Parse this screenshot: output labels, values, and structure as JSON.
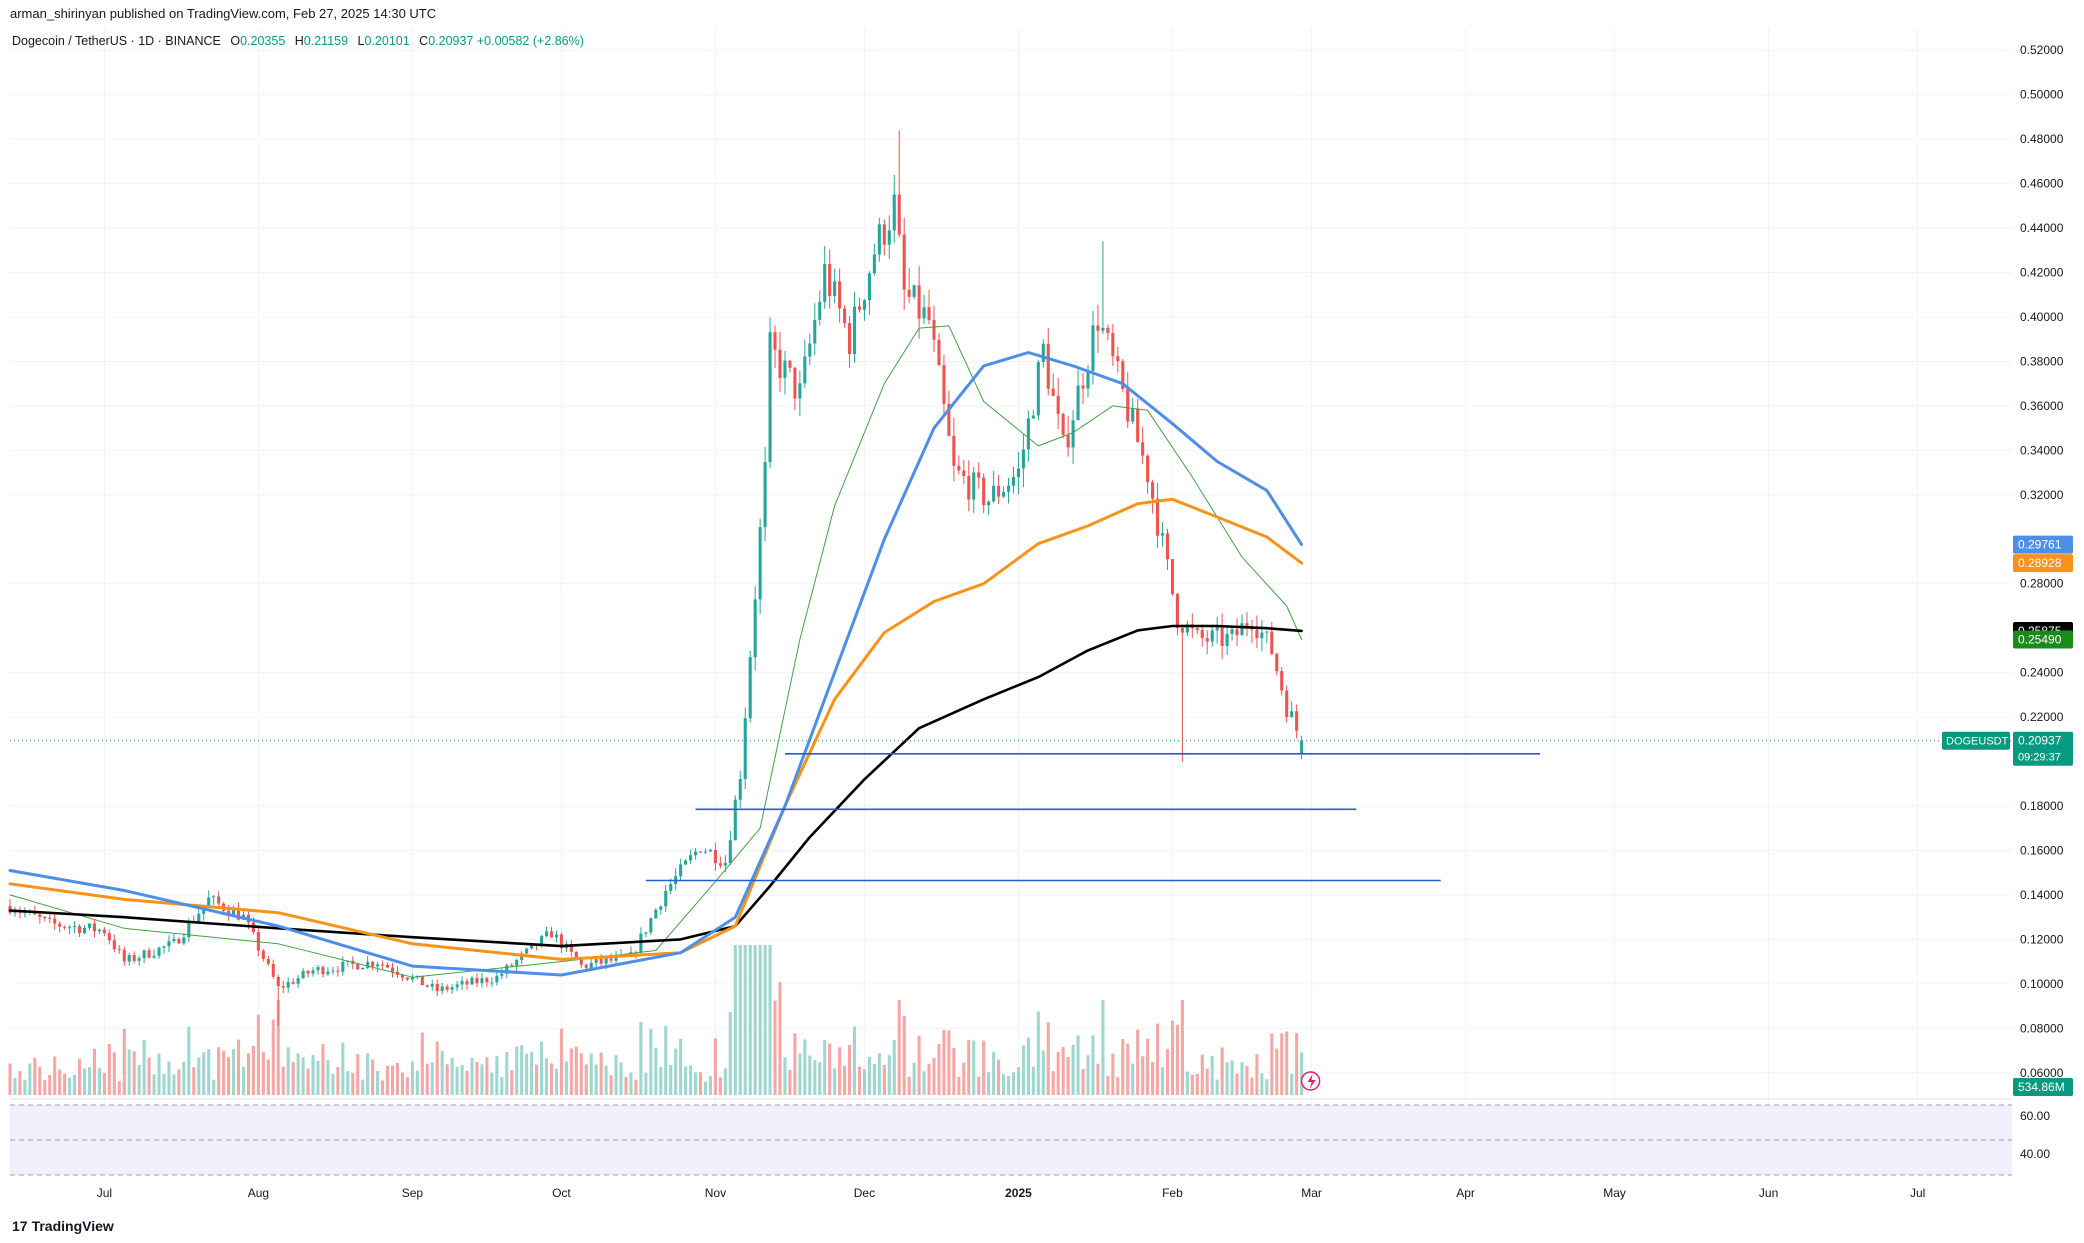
{
  "header": {
    "publisher": "arman_shirinyan published on TradingView.com, Feb 27, 2025 14:30 UTC",
    "symbol_line": "Dogecoin / TetherUS · 1D · BINANCE",
    "ohlc": {
      "open_key": "O",
      "open": "0.20355",
      "high_key": "H",
      "high": "0.21159",
      "low_key": "L",
      "low": "0.20101",
      "close_key": "C",
      "close": "0.20937",
      "change": "+0.00582 (+2.86%)"
    }
  },
  "footer": {
    "brand": "TradingView",
    "brand_mark": "17"
  },
  "colors": {
    "up": "#26a69a",
    "down": "#ef5350",
    "ma_blue": "#4d8fe8",
    "ma_orange": "#f7931a",
    "ma_black": "#000000",
    "ma_green": "#43a047",
    "hline": "#1e5ed8",
    "price_label": "#089981",
    "rsi_band": "#f2eefb"
  },
  "chart_data": {
    "type": "candlestick",
    "x_ticks": [
      {
        "label": "Jul",
        "date": "2024-07-01"
      },
      {
        "label": "Aug",
        "date": "2024-08-01"
      },
      {
        "label": "Sep",
        "date": "2024-09-01"
      },
      {
        "label": "Oct",
        "date": "2024-10-01"
      },
      {
        "label": "Nov",
        "date": "2024-11-01"
      },
      {
        "label": "Dec",
        "date": "2024-12-01"
      },
      {
        "label": "2025",
        "date": "2025-01-01"
      },
      {
        "label": "Feb",
        "date": "2025-02-01"
      },
      {
        "label": "Mar",
        "date": "2025-03-01"
      },
      {
        "label": "Apr",
        "date": "2025-04-01"
      },
      {
        "label": "May",
        "date": "2025-05-01"
      },
      {
        "label": "Jun",
        "date": "2025-06-01"
      },
      {
        "label": "Jul",
        "date": "2025-07-01"
      }
    ],
    "x_range": [
      "2024-06-12",
      "2025-07-20"
    ],
    "y_range": [
      0.05,
      0.53
    ],
    "y_ticks": [
      "0.52000",
      "0.50000",
      "0.48000",
      "0.46000",
      "0.44000",
      "0.42000",
      "0.40000",
      "0.38000",
      "0.36000",
      "0.34000",
      "0.32000",
      "0.28000",
      "0.24000",
      "0.22000",
      "0.18000",
      "0.16000",
      "0.14000",
      "0.12000",
      "0.10000",
      "0.08000",
      "0.06000"
    ],
    "price_labels": [
      {
        "value": 0.29761,
        "text": "0.29761",
        "color": "#4d8fe8"
      },
      {
        "value": 0.28928,
        "text": "0.28928",
        "color": "#f7931a"
      },
      {
        "value": 0.25875,
        "text": "0.25875",
        "color": "#000000"
      },
      {
        "value": 0.2549,
        "text": "0.25490",
        "color": "#1b8a1b"
      }
    ],
    "current_price": {
      "value": 0.20937,
      "symbol": "DOGEUSDT",
      "text": "0.20937",
      "countdown": "09:29:37"
    },
    "volume_label": "534.86M",
    "rsi_ticks": [
      "60.00",
      "40.00"
    ],
    "horizontal_lines": [
      {
        "value": 0.2035,
        "from": "2024-11-15",
        "to": "2025-04-16"
      },
      {
        "value": 0.1785,
        "from": "2024-10-28",
        "to": "2025-03-10"
      },
      {
        "value": 0.1465,
        "from": "2024-10-18",
        "to": "2025-03-27"
      }
    ],
    "price_anchors": [
      [
        "2024-06-12",
        0.135
      ],
      [
        "2024-06-20",
        0.127
      ],
      [
        "2024-07-01",
        0.124
      ],
      [
        "2024-07-05",
        0.11
      ],
      [
        "2024-07-15",
        0.118
      ],
      [
        "2024-07-22",
        0.138
      ],
      [
        "2024-07-29",
        0.13
      ],
      [
        "2024-08-05",
        0.098
      ],
      [
        "2024-08-12",
        0.106
      ],
      [
        "2024-08-25",
        0.11
      ],
      [
        "2024-09-06",
        0.097
      ],
      [
        "2024-09-18",
        0.103
      ],
      [
        "2024-09-29",
        0.123
      ],
      [
        "2024-10-05",
        0.108
      ],
      [
        "2024-10-15",
        0.112
      ],
      [
        "2024-10-22",
        0.142
      ],
      [
        "2024-10-29",
        0.162
      ],
      [
        "2024-11-03",
        0.155
      ],
      [
        "2024-11-06",
        0.195
      ],
      [
        "2024-11-11",
        0.33
      ],
      [
        "2024-11-12",
        0.385
      ],
      [
        "2024-11-18",
        0.365
      ],
      [
        "2024-11-23",
        0.42
      ],
      [
        "2024-11-28",
        0.39
      ],
      [
        "2024-12-03",
        0.43
      ],
      [
        "2024-12-07",
        0.45
      ],
      [
        "2024-12-09",
        0.41
      ],
      [
        "2024-12-14",
        0.398
      ],
      [
        "2024-12-19",
        0.33
      ],
      [
        "2024-12-26",
        0.318
      ],
      [
        "2025-01-01",
        0.33
      ],
      [
        "2025-01-06",
        0.385
      ],
      [
        "2025-01-10",
        0.34
      ],
      [
        "2025-01-17",
        0.4
      ],
      [
        "2025-01-22",
        0.365
      ],
      [
        "2025-01-27",
        0.33
      ],
      [
        "2025-02-02",
        0.265
      ],
      [
        "2025-02-06",
        0.255
      ],
      [
        "2025-02-13",
        0.255
      ],
      [
        "2025-02-17",
        0.265
      ],
      [
        "2025-02-21",
        0.25
      ],
      [
        "2025-02-24",
        0.225
      ],
      [
        "2025-02-27",
        0.209
      ]
    ],
    "wick_spikes": [
      {
        "date": "2024-08-05",
        "low": 0.081
      },
      {
        "date": "2024-12-08",
        "high": 0.484
      },
      {
        "date": "2025-01-18",
        "high": 0.434
      },
      {
        "date": "2025-02-03",
        "low": 0.2
      }
    ],
    "ma_blue": [
      [
        "2024-06-12",
        0.151
      ],
      [
        "2024-07-05",
        0.142
      ],
      [
        "2024-08-05",
        0.126
      ],
      [
        "2024-09-01",
        0.108
      ],
      [
        "2024-10-01",
        0.104
      ],
      [
        "2024-10-25",
        0.114
      ],
      [
        "2024-11-05",
        0.13
      ],
      [
        "2024-11-15",
        0.18
      ],
      [
        "2024-11-25",
        0.24
      ],
      [
        "2024-12-05",
        0.3
      ],
      [
        "2024-12-15",
        0.35
      ],
      [
        "2024-12-25",
        0.378
      ],
      [
        "2025-01-03",
        0.384
      ],
      [
        "2025-01-12",
        0.378
      ],
      [
        "2025-01-22",
        0.37
      ],
      [
        "2025-02-01",
        0.352
      ],
      [
        "2025-02-10",
        0.335
      ],
      [
        "2025-02-20",
        0.322
      ],
      [
        "2025-02-27",
        0.2976
      ]
    ],
    "ma_orange": [
      [
        "2024-06-12",
        0.145
      ],
      [
        "2024-07-05",
        0.138
      ],
      [
        "2024-08-05",
        0.132
      ],
      [
        "2024-09-01",
        0.118
      ],
      [
        "2024-10-01",
        0.111
      ],
      [
        "2024-10-25",
        0.114
      ],
      [
        "2024-11-05",
        0.126
      ],
      [
        "2024-11-15",
        0.18
      ],
      [
        "2024-11-25",
        0.228
      ],
      [
        "2024-12-05",
        0.258
      ],
      [
        "2024-12-15",
        0.272
      ],
      [
        "2024-12-25",
        0.28
      ],
      [
        "2025-01-05",
        0.298
      ],
      [
        "2025-01-15",
        0.306
      ],
      [
        "2025-01-25",
        0.316
      ],
      [
        "2025-02-01",
        0.318
      ],
      [
        "2025-02-10",
        0.31
      ],
      [
        "2025-02-20",
        0.301
      ],
      [
        "2025-02-27",
        0.2893
      ]
    ],
    "ma_black": [
      [
        "2024-06-12",
        0.133
      ],
      [
        "2024-07-05",
        0.13
      ],
      [
        "2024-08-05",
        0.125
      ],
      [
        "2024-09-01",
        0.121
      ],
      [
        "2024-10-01",
        0.117
      ],
      [
        "2024-10-25",
        0.12
      ],
      [
        "2024-11-05",
        0.126
      ],
      [
        "2024-11-12",
        0.144
      ],
      [
        "2024-11-20",
        0.166
      ],
      [
        "2024-12-01",
        0.192
      ],
      [
        "2024-12-12",
        0.215
      ],
      [
        "2024-12-25",
        0.228
      ],
      [
        "2025-01-05",
        0.238
      ],
      [
        "2025-01-15",
        0.25
      ],
      [
        "2025-01-25",
        0.259
      ],
      [
        "2025-02-01",
        0.261
      ],
      [
        "2025-02-10",
        0.261
      ],
      [
        "2025-02-20",
        0.26
      ],
      [
        "2025-02-27",
        0.2588
      ]
    ],
    "ma_green": [
      [
        "2024-06-12",
        0.14
      ],
      [
        "2024-07-05",
        0.125
      ],
      [
        "2024-08-05",
        0.118
      ],
      [
        "2024-09-01",
        0.103
      ],
      [
        "2024-10-01",
        0.11
      ],
      [
        "2024-10-20",
        0.115
      ],
      [
        "2024-11-01",
        0.146
      ],
      [
        "2024-11-10",
        0.17
      ],
      [
        "2024-11-18",
        0.255
      ],
      [
        "2024-11-25",
        0.315
      ],
      [
        "2024-12-05",
        0.37
      ],
      [
        "2024-12-12",
        0.395
      ],
      [
        "2024-12-18",
        0.396
      ],
      [
        "2024-12-25",
        0.362
      ],
      [
        "2025-01-05",
        0.342
      ],
      [
        "2025-01-12",
        0.348
      ],
      [
        "2025-01-20",
        0.36
      ],
      [
        "2025-01-27",
        0.358
      ],
      [
        "2025-02-05",
        0.328
      ],
      [
        "2025-02-15",
        0.292
      ],
      [
        "2025-02-24",
        0.27
      ],
      [
        "2025-02-27",
        0.2549
      ]
    ]
  }
}
